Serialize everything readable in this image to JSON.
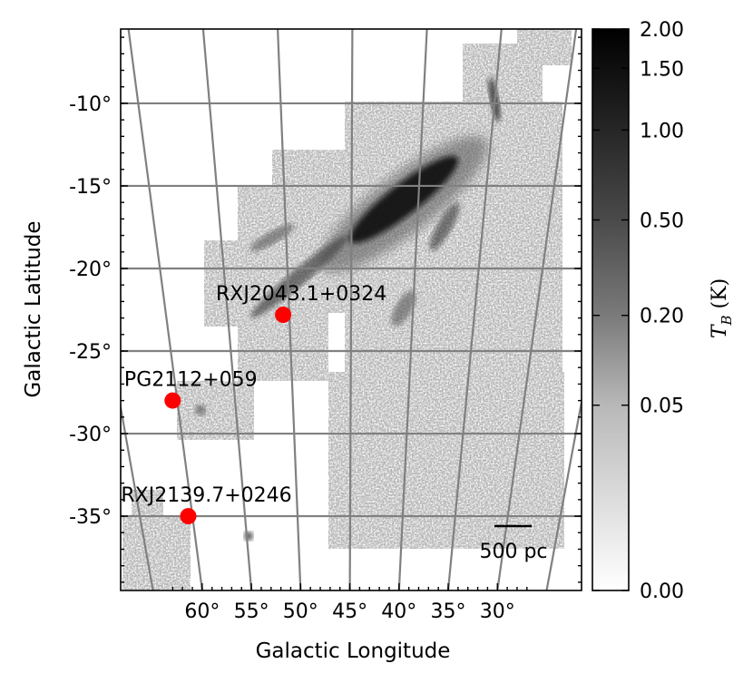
{
  "chart_data": {
    "type": "heatmap",
    "title": "",
    "xlabel": "Galactic Longitude",
    "ylabel": "Galactic Latitude",
    "xlim": [
      63.5,
      26.5
    ],
    "ylim": [
      -39.5,
      -5.5
    ],
    "x_axis_direction": "decreasing to the right",
    "grid": true,
    "x_ticks": [
      {
        "value": 60,
        "label": "60°"
      },
      {
        "value": 55,
        "label": "55°"
      },
      {
        "value": 50,
        "label": "50°"
      },
      {
        "value": 45,
        "label": "45°"
      },
      {
        "value": 40,
        "label": "40°"
      },
      {
        "value": 35,
        "label": "35°"
      },
      {
        "value": 30,
        "label": "30°"
      }
    ],
    "y_ticks": [
      {
        "value": -10,
        "label": "-10°"
      },
      {
        "value": -15,
        "label": "-15°"
      },
      {
        "value": -20,
        "label": "-20°"
      },
      {
        "value": -25,
        "label": "-25°"
      },
      {
        "value": -30,
        "label": "-30°"
      },
      {
        "value": -35,
        "label": "-35°"
      }
    ],
    "colorbar": {
      "label_symbol": "T",
      "label_subscript": "B",
      "label_unit": " (K)",
      "colormap": "gray (white to black)",
      "scale": "nonlinear",
      "min": 0.0,
      "max": 2.0,
      "ticks": [
        "2.00",
        "1.50",
        "1.00",
        "0.50",
        "0.20",
        "0.05",
        "0.00"
      ],
      "tick_values": [
        2.0,
        1.5,
        1.0,
        0.5,
        0.2,
        0.05,
        0.0
      ]
    },
    "sources": [
      {
        "name": "RXJ2043.1+0324",
        "l": 50.5,
        "b": -22.8,
        "color": "#ff0000"
      },
      {
        "name": "PG2112+059",
        "l": 60.4,
        "b": -28.0,
        "color": "#ff0000"
      },
      {
        "name": "RXJ2139.7+0246",
        "l": 60.4,
        "b": -35.0,
        "color": "#ff0000"
      }
    ],
    "scale_bar": {
      "label": "500 pc"
    }
  }
}
